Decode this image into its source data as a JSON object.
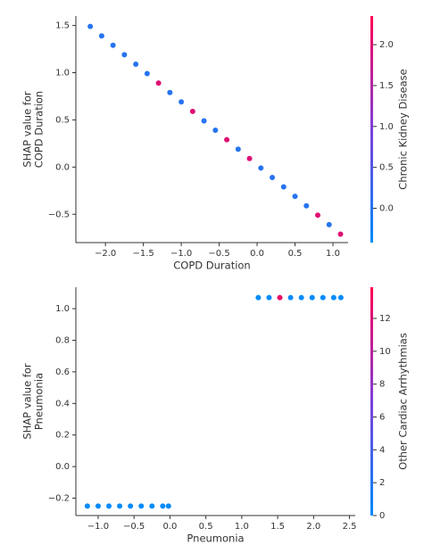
{
  "chart_data": [
    {
      "type": "scatter",
      "xlabel": "COPD Duration",
      "ylabel": [
        "SHAP value for",
        "COPD Duration"
      ],
      "x": [
        -2.2,
        -2.05,
        -1.9,
        -1.75,
        -1.6,
        -1.45,
        -1.3,
        -1.15,
        -1.0,
        -0.85,
        -0.7,
        -0.55,
        -0.4,
        -0.25,
        -0.1,
        0.05,
        0.2,
        0.35,
        0.5,
        0.65,
        0.8,
        0.95,
        1.1
      ],
      "values": [
        1.49,
        1.39,
        1.29,
        1.19,
        1.09,
        0.99,
        0.89,
        0.79,
        0.69,
        0.59,
        0.49,
        0.39,
        0.29,
        0.19,
        0.09,
        -0.01,
        -0.11,
        -0.21,
        -0.31,
        -0.41,
        -0.51,
        -0.61,
        -0.71
      ],
      "color_values": [
        0,
        0,
        0,
        0,
        0,
        0,
        2,
        0,
        0,
        2,
        0,
        0,
        2,
        0,
        2,
        0,
        0,
        0,
        0,
        0,
        2,
        0,
        2
      ],
      "xlim": [
        -2.39,
        1.2
      ],
      "ylim": [
        -0.8,
        1.6
      ],
      "xticks": [
        {
          "value": -2.0,
          "label": "−2.0"
        },
        {
          "value": -1.5,
          "label": "−1.5"
        },
        {
          "value": -1.0,
          "label": "−1.0"
        },
        {
          "value": -0.5,
          "label": "−0.5"
        },
        {
          "value": 0.0,
          "label": "0.0"
        },
        0.5,
        {
          "value": 1.0,
          "label": "1.0"
        }
      ],
      "yticks": [
        {
          "value": -0.5,
          "label": "−0.5"
        },
        {
          "value": 0.0,
          "label": "0.0"
        },
        0.5,
        {
          "value": 1.0,
          "label": "1.0"
        },
        1.5
      ],
      "colorbar": {
        "label": "Chronic Kidney Disease",
        "lim": [
          -0.42,
          2.35
        ],
        "ticks": [
          {
            "value": 0.0,
            "label": "0.0"
          },
          0.5,
          {
            "value": 1.0,
            "label": "1.0"
          },
          1.5,
          {
            "value": 2.0,
            "label": "2.0"
          }
        ]
      },
      "colors": [
        "#008bfb",
        "#7d3fd9",
        "#ff0052"
      ]
    },
    {
      "type": "scatter",
      "xlabel": "Pneumonia",
      "ylabel": [
        "SHAP value for",
        "Pneumonia"
      ],
      "x": [
        -1.15,
        -1.0,
        -0.85,
        -0.7,
        -0.55,
        -0.4,
        -0.25,
        -0.1,
        -0.02,
        1.23,
        1.38,
        1.53,
        1.68,
        1.83,
        1.98,
        2.13,
        2.28,
        2.38
      ],
      "values": [
        -0.25,
        -0.25,
        -0.25,
        -0.25,
        -0.25,
        -0.25,
        -0.25,
        -0.25,
        -0.25,
        1.07,
        1.07,
        1.07,
        1.07,
        1.07,
        1.07,
        1.07,
        1.07,
        1.07
      ],
      "color_values": [
        0,
        0,
        0,
        0,
        0,
        0,
        0,
        0,
        0,
        0,
        0,
        13,
        0,
        0,
        0,
        0,
        0,
        0
      ],
      "xlim": [
        -1.31,
        2.58
      ],
      "ylim": [
        -0.31,
        1.136
      ],
      "xticks": [
        {
          "value": -1.0,
          "label": "−1.0"
        },
        {
          "value": -0.5,
          "label": "−0.5"
        },
        {
          "value": 0.0,
          "label": "0.0"
        },
        0.5,
        {
          "value": 1.0,
          "label": "1.0"
        },
        1.5,
        {
          "value": 2.0,
          "label": "2.0"
        },
        2.5
      ],
      "yticks": [
        {
          "value": -0.2,
          "label": "−0.2"
        },
        {
          "value": 0.0,
          "label": "0.0"
        },
        0.2,
        0.4,
        0.6,
        0.8,
        {
          "value": 1.0,
          "label": "1.0"
        }
      ],
      "colorbar": {
        "label": "Other Cardiac Arrhythmias",
        "lim": [
          0,
          13.9
        ],
        "ticks": [
          0,
          2,
          4,
          6,
          8,
          10,
          12
        ]
      },
      "colors": [
        "#008bfb",
        "#7d3fd9",
        "#ff0052"
      ]
    }
  ]
}
